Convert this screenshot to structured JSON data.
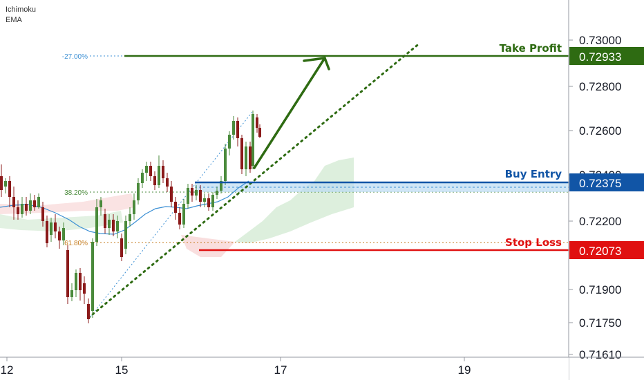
{
  "indicators": [
    "Ichimoku",
    "EMA"
  ],
  "chart_data": {
    "type": "candlestick",
    "y_ticks": [
      "0.73000",
      "0.72800",
      "0.72600",
      "0.72400",
      "0.72200",
      "0.71900",
      "0.71750",
      "0.71610"
    ],
    "x_ticks": [
      "12",
      "15",
      "17",
      "19"
    ],
    "levels": [
      {
        "name": "Take Profit",
        "value": 0.72933,
        "label": "0.72933",
        "color": "#2e6b12"
      },
      {
        "name": "Buy Entry",
        "value": 0.72375,
        "label": "0.72375",
        "color": "#1155a6"
      },
      {
        "name": "Stop Loss",
        "value": 0.72073,
        "label": "0.72073",
        "color": "#e01010"
      }
    ],
    "fib_labels": [
      {
        "label": "-27.00%",
        "color": "#3b8fd4"
      },
      {
        "label": "38.20%",
        "color": "#4a8a3b"
      },
      {
        "label": "61.80%",
        "color": "#c47a1b"
      }
    ],
    "colors": {
      "bull": "#4a8a3b",
      "bear": "#8b1a1a",
      "ema": "#3b8fd4",
      "cloud_green": "#cfe8cf",
      "cloud_red": "#f7d0d0"
    }
  }
}
